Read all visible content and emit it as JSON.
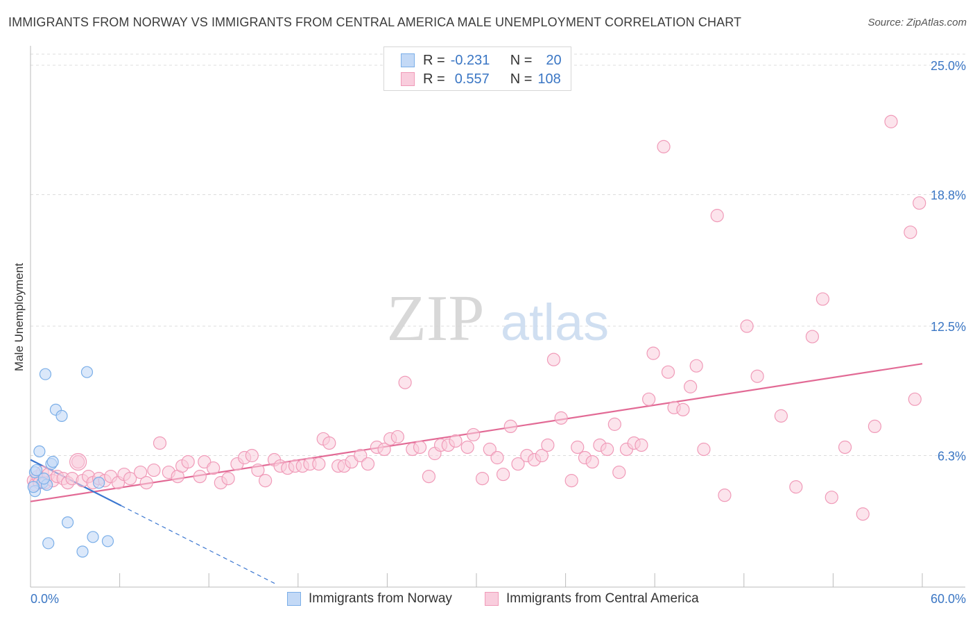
{
  "title": "IMMIGRANTS FROM NORWAY VS IMMIGRANTS FROM CENTRAL AMERICA MALE UNEMPLOYMENT CORRELATION CHART",
  "source": "Source: ZipAtlas.com",
  "watermark": {
    "zip": "ZIP",
    "atlas": "atlas"
  },
  "legend": {
    "rows": [
      {
        "r_label": "R =",
        "r_value": "-0.231",
        "n_label": "N =",
        "n_value": "20"
      },
      {
        "r_label": "R =",
        "r_value": "0.557",
        "n_label": "N =",
        "n_value": "108"
      }
    ]
  },
  "bottom_legend": [
    "Immigrants from Norway",
    "Immigrants from Central America"
  ],
  "chart_data": {
    "type": "scatter",
    "ylabel": "Male Unemployment",
    "xlabel": "",
    "xlim": [
      0,
      60
    ],
    "ylim": [
      0,
      25.8
    ],
    "x_tick_labels": [
      "0.0%",
      "60.0%"
    ],
    "y_ticks": [
      6.3,
      12.5,
      18.8,
      25.0
    ],
    "y_tick_labels": [
      "6.3%",
      "12.5%",
      "18.8%",
      "25.0%"
    ],
    "grid": true,
    "legend_placement": "top-center",
    "series": [
      {
        "name": "Immigrants from Norway",
        "color": "#7aaee8",
        "fill": "#c3d9f6",
        "trend_color": "#3a76d0",
        "trend": {
          "x0": 0,
          "y0": 6.1,
          "x1": 6.1,
          "y1": 3.9,
          "dash_to_x": 16.5
        },
        "points": [
          [
            0.3,
            5.5
          ],
          [
            0.3,
            4.6
          ],
          [
            0.6,
            6.5
          ],
          [
            0.8,
            5.0
          ],
          [
            1.0,
            10.2
          ],
          [
            1.1,
            4.9
          ],
          [
            1.2,
            2.1
          ],
          [
            1.4,
            5.9
          ],
          [
            1.5,
            6.0
          ],
          [
            1.7,
            8.5
          ],
          [
            2.1,
            8.2
          ],
          [
            2.5,
            3.1
          ],
          [
            3.5,
            1.7
          ],
          [
            3.8,
            10.3
          ],
          [
            4.2,
            2.4
          ],
          [
            4.6,
            5.0
          ],
          [
            5.2,
            2.2
          ],
          [
            0.4,
            5.6
          ],
          [
            0.2,
            4.8
          ],
          [
            0.9,
            5.2
          ]
        ]
      },
      {
        "name": "Immigrants from Central America",
        "color": "#f09ab8",
        "fill": "#f9cddd",
        "trend_color": "#e26a95",
        "trend": {
          "x0": 0,
          "y0": 4.1,
          "x1": 60,
          "y1": 10.7
        },
        "points": [
          [
            0.2,
            5.1
          ],
          [
            0.3,
            4.9
          ],
          [
            0.5,
            5.3
          ],
          [
            0.6,
            5.0
          ],
          [
            0.8,
            5.5
          ],
          [
            1.0,
            5.0
          ],
          [
            1.2,
            5.4
          ],
          [
            1.5,
            5.1
          ],
          [
            1.8,
            5.3
          ],
          [
            2.2,
            5.2
          ],
          [
            2.5,
            5.0
          ],
          [
            2.8,
            5.2
          ],
          [
            3.2,
            6.0
          ],
          [
            3.5,
            5.1
          ],
          [
            3.9,
            5.3
          ],
          [
            4.2,
            5.0
          ],
          [
            4.6,
            5.2
          ],
          [
            5.0,
            5.1
          ],
          [
            5.4,
            5.3
          ],
          [
            5.9,
            5.0
          ],
          [
            6.3,
            5.4
          ],
          [
            6.7,
            5.2
          ],
          [
            7.4,
            5.5
          ],
          [
            7.8,
            5.0
          ],
          [
            8.3,
            5.6
          ],
          [
            8.7,
            6.9
          ],
          [
            9.3,
            5.5
          ],
          [
            9.9,
            5.3
          ],
          [
            10.2,
            5.8
          ],
          [
            10.6,
            6.0
          ],
          [
            11.4,
            5.3
          ],
          [
            11.7,
            6.0
          ],
          [
            12.3,
            5.7
          ],
          [
            12.8,
            5.0
          ],
          [
            13.3,
            5.2
          ],
          [
            13.9,
            5.9
          ],
          [
            14.4,
            6.2
          ],
          [
            14.9,
            6.3
          ],
          [
            15.3,
            5.6
          ],
          [
            15.8,
            5.1
          ],
          [
            16.4,
            6.1
          ],
          [
            16.8,
            5.8
          ],
          [
            17.3,
            5.7
          ],
          [
            17.8,
            5.8
          ],
          [
            18.3,
            5.8
          ],
          [
            18.8,
            5.9
          ],
          [
            19.4,
            5.9
          ],
          [
            19.7,
            7.1
          ],
          [
            20.1,
            6.9
          ],
          [
            20.7,
            5.8
          ],
          [
            21.1,
            5.8
          ],
          [
            21.6,
            6.0
          ],
          [
            22.2,
            6.3
          ],
          [
            22.7,
            5.9
          ],
          [
            23.3,
            6.7
          ],
          [
            23.8,
            6.6
          ],
          [
            24.2,
            7.1
          ],
          [
            24.7,
            7.2
          ],
          [
            25.2,
            9.8
          ],
          [
            25.7,
            6.6
          ],
          [
            26.2,
            6.7
          ],
          [
            26.8,
            5.3
          ],
          [
            27.2,
            6.4
          ],
          [
            27.6,
            6.8
          ],
          [
            28.1,
            6.8
          ],
          [
            28.6,
            7.0
          ],
          [
            29.4,
            6.7
          ],
          [
            29.8,
            7.3
          ],
          [
            30.4,
            5.2
          ],
          [
            30.9,
            6.6
          ],
          [
            31.4,
            6.2
          ],
          [
            31.8,
            5.4
          ],
          [
            32.3,
            7.7
          ],
          [
            32.8,
            5.9
          ],
          [
            33.4,
            6.3
          ],
          [
            33.9,
            6.1
          ],
          [
            34.4,
            6.3
          ],
          [
            34.8,
            6.8
          ],
          [
            35.2,
            10.9
          ],
          [
            35.7,
            8.1
          ],
          [
            36.4,
            5.1
          ],
          [
            36.8,
            6.7
          ],
          [
            37.3,
            6.2
          ],
          [
            37.8,
            6.0
          ],
          [
            38.3,
            6.8
          ],
          [
            38.8,
            6.6
          ],
          [
            39.3,
            7.8
          ],
          [
            39.6,
            5.5
          ],
          [
            40.1,
            6.6
          ],
          [
            40.6,
            6.9
          ],
          [
            41.1,
            6.8
          ],
          [
            41.6,
            9.0
          ],
          [
            41.9,
            11.2
          ],
          [
            42.6,
            21.1
          ],
          [
            42.9,
            10.3
          ],
          [
            43.3,
            8.6
          ],
          [
            43.9,
            8.5
          ],
          [
            44.4,
            9.6
          ],
          [
            44.8,
            10.6
          ],
          [
            45.3,
            6.6
          ],
          [
            46.2,
            17.8
          ],
          [
            46.7,
            4.4
          ],
          [
            48.2,
            12.5
          ],
          [
            48.9,
            10.1
          ],
          [
            50.5,
            8.2
          ],
          [
            51.5,
            4.8
          ],
          [
            52.6,
            12.0
          ],
          [
            53.3,
            13.8
          ],
          [
            53.9,
            4.3
          ],
          [
            54.8,
            6.7
          ],
          [
            56.0,
            3.5
          ],
          [
            56.8,
            7.7
          ],
          [
            57.9,
            22.3
          ],
          [
            59.2,
            17.0
          ],
          [
            59.5,
            9.0
          ],
          [
            59.8,
            18.4
          ]
        ]
      }
    ]
  }
}
